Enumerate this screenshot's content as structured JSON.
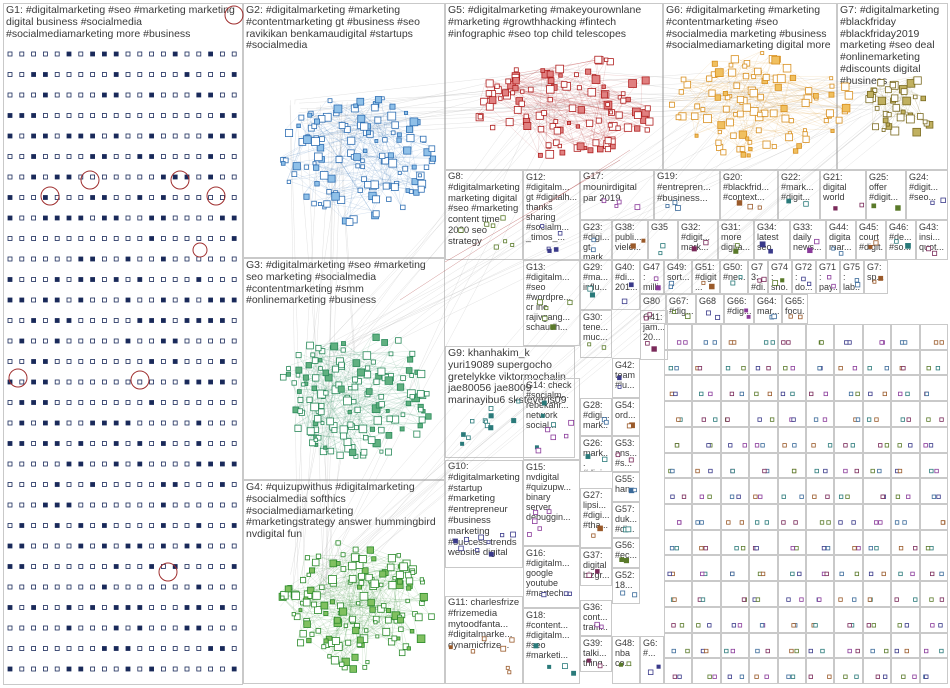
{
  "groups": [
    {
      "id": "g1",
      "label": "G1: #digitalmarketing #seo #marketing marketing digital business #socialmedia #socialmediamarketing more #business",
      "color": "#2a3a6a"
    },
    {
      "id": "g2",
      "label": "G2: #digitalmarketing #marketing #contentmarketing gt #business #seo ravikikan benkamaudigital #startups #socialmedia",
      "color": "#2f6fb3"
    },
    {
      "id": "g5",
      "label": "G5: #digitalmarketing #makeyourownlane #marketing #growthhacking #fintech #infographic #seo top child telescopes",
      "color": "#b02020"
    },
    {
      "id": "g6",
      "label": "G6: #digitalmarketing #marketing #contentmarketing #seo #socialmedia marketing #business #socialmediamarketing digital more",
      "color": "#d89020"
    },
    {
      "id": "g7",
      "label": "G7: #digitalmarketing #blackfriday #blackfriday2019 marketing #seo deal #onlinemarketing #discounts digital #business",
      "color": "#7a6a20"
    },
    {
      "id": "g8",
      "label": "G8: #digitalmarketing marketing digital #seo #marketing content time 2020 seo strategy",
      "color": "#555"
    },
    {
      "id": "g12",
      "label": "G12: #digitalm... gt #digitalh... thanks sharing #socialm... _timos_...",
      "color": "#555"
    },
    {
      "id": "g17",
      "label": "G17: mounirdigital par 2019",
      "color": "#555"
    },
    {
      "id": "g19",
      "label": "G19: #entrepren... #business...",
      "color": "#555"
    },
    {
      "id": "g20",
      "label": "G20: #blackfrid... #context...",
      "color": "#555"
    },
    {
      "id": "g22",
      "label": "G22: #mark... #digit...",
      "color": "#555"
    },
    {
      "id": "g21",
      "label": "G21: digital world",
      "color": "#555"
    },
    {
      "id": "g25",
      "label": "G25: offer #digit...",
      "color": "#555"
    },
    {
      "id": "g24",
      "label": "G24: #digit... #seo...",
      "color": "#555"
    },
    {
      "id": "g3",
      "label": "G3: #digitalmarketing #seo #marketing seo marketing #socialmedia #contentmarketing #smm #onlinemarketing #business",
      "color": "#2a8a5a"
    },
    {
      "id": "g23",
      "label": "G23: #digi... gt mark...",
      "color": "#555"
    },
    {
      "id": "g38",
      "label": "G38: publi... viele...",
      "color": "#555"
    },
    {
      "id": "g35",
      "label": "G35",
      "color": "#555"
    },
    {
      "id": "g32",
      "label": "G32: #digit... mark...",
      "color": "#555"
    },
    {
      "id": "g31",
      "label": "G31: more digita...",
      "color": "#555"
    },
    {
      "id": "g34",
      "label": "G34: latest seo",
      "color": "#555"
    },
    {
      "id": "g33",
      "label": "G33: daily news...",
      "color": "#555"
    },
    {
      "id": "g44",
      "label": "G44: digita mar...",
      "color": "#555"
    },
    {
      "id": "g45",
      "label": "G45: court #digit...",
      "color": "#555"
    },
    {
      "id": "g46",
      "label": "G46: #de... #so...",
      "color": "#555"
    },
    {
      "id": "g43",
      "label": "G43: insi... quot...",
      "color": "#555"
    },
    {
      "id": "g13",
      "label": "G13: #digitalm... #seo #wordpre... cr inc rajivgang... schaudh...",
      "color": "#555"
    },
    {
      "id": "g40",
      "label": "G40: #di... 201...",
      "color": "#555"
    },
    {
      "id": "g47",
      "label": "G47: milli...",
      "color": "#555"
    },
    {
      "id": "g49",
      "label": "G49: sort...",
      "color": "#555"
    },
    {
      "id": "g51",
      "label": "G51: #digit...",
      "color": "#555"
    },
    {
      "id": "g50",
      "label": "G50: #ne...",
      "color": "#555"
    },
    {
      "id": "g73",
      "label": "G73: #di...",
      "color": "#555"
    },
    {
      "id": "g74",
      "label": "G74: sho...",
      "color": "#555"
    },
    {
      "id": "g72",
      "label": "G72: do...",
      "color": "#555"
    },
    {
      "id": "g71",
      "label": "G71: pay...",
      "color": "#555"
    },
    {
      "id": "g75",
      "label": "G75: lab...",
      "color": "#555"
    },
    {
      "id": "g7b",
      "label": "G7: sp...",
      "color": "#555"
    },
    {
      "id": "g29",
      "label": "G29: #ma... influ...",
      "color": "#555"
    },
    {
      "id": "g80",
      "label": "G80",
      "color": "#555"
    },
    {
      "id": "g67",
      "label": "G67: #dig...",
      "color": "#555"
    },
    {
      "id": "g68",
      "label": "G68",
      "color": "#555"
    },
    {
      "id": "g66",
      "label": "G66: #dig...",
      "color": "#555"
    },
    {
      "id": "g64",
      "label": "G64: mar...",
      "color": "#555"
    },
    {
      "id": "g65",
      "label": "G65: focu...",
      "color": "#555"
    },
    {
      "id": "g9",
      "label": "G9: khanhakim_k yuri19089 supergocho gretelykke viktormochalin jae80056 jae8009 marinayibu6 sksteveris09",
      "color": "#555"
    },
    {
      "id": "g41",
      "label": "G41: jam... 20...",
      "color": "#555"
    },
    {
      "id": "g30",
      "label": "G30: tene... muc...",
      "color": "#555"
    },
    {
      "id": "g42",
      "label": "G42: team #lu...",
      "color": "#555"
    },
    {
      "id": "g14",
      "label": "G14: check #socialm... rebekahr... network social...",
      "color": "#555"
    },
    {
      "id": "g28",
      "label": "G28: #digi... mark...",
      "color": "#555"
    },
    {
      "id": "g54",
      "label": "G54: ord...",
      "color": "#555"
    },
    {
      "id": "g26",
      "label": "G26: mark... #digi...",
      "color": "#555"
    },
    {
      "id": "g53",
      "label": "G53: ans... #s...",
      "color": "#555"
    },
    {
      "id": "g4",
      "label": "G4: #quizupwithus #digitalmarketing #socialmedia softhics #socialmediamarketing #marketingstrategy answer hummingbird nvdigital fun",
      "color": "#2a8a2a"
    },
    {
      "id": "g10",
      "label": "G10: #digitalmarketing #startup #marketing #entrepreneur #business marketing #success trends website digital",
      "color": "#555"
    },
    {
      "id": "g15",
      "label": "G15: nvdigital #quizupw... binary server debuggin...",
      "color": "#555"
    },
    {
      "id": "g55",
      "label": "G55: han...",
      "color": "#555"
    },
    {
      "id": "g27",
      "label": "G27: lipsi... #digi... #tha...",
      "color": "#555"
    },
    {
      "id": "g57",
      "label": "G57: duk... #di...",
      "color": "#555"
    },
    {
      "id": "g37",
      "label": "G37: digital bizgr...",
      "color": "#555"
    },
    {
      "id": "g56",
      "label": "G56: #ec...",
      "color": "#555"
    },
    {
      "id": "g16",
      "label": "G16: #digitalm... google youtube #martech...",
      "color": "#555"
    },
    {
      "id": "g36",
      "label": "G36: cont... traffi...",
      "color": "#555"
    },
    {
      "id": "g52",
      "label": "G52: 18...",
      "color": "#555"
    },
    {
      "id": "g11",
      "label": "G11: charlesfrize #frizemedia mytoodfanta... #digitalmarke... dynamicfrize...",
      "color": "#555"
    },
    {
      "id": "g18",
      "label": "G18: #content... #digitalm... #seo #marketi...",
      "color": "#555"
    },
    {
      "id": "g39",
      "label": "G39: talki... thing...",
      "color": "#555"
    },
    {
      "id": "g48",
      "label": "G48: nba co...",
      "color": "#555"
    },
    {
      "id": "g6b",
      "label": "G6: #...",
      "color": "#555"
    }
  ]
}
